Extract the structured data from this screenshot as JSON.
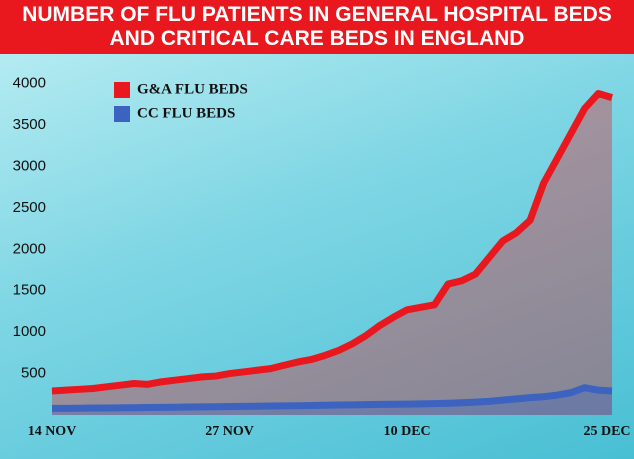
{
  "chart_data": {
    "type": "line",
    "title": "NUMBER OF FLU PATIENTS IN GENERAL HOSPITAL BEDS AND CRITICAL CARE BEDS IN ENGLAND",
    "categories": [
      "14 NOV",
      null,
      null,
      null,
      null,
      null,
      null,
      null,
      null,
      null,
      null,
      null,
      null,
      "27 NOV",
      null,
      null,
      null,
      null,
      null,
      null,
      null,
      null,
      null,
      null,
      null,
      null,
      "10 DEC",
      null,
      null,
      null,
      null,
      null,
      null,
      null,
      null,
      null,
      null,
      null,
      null,
      null,
      null,
      "25 DEC"
    ],
    "series": [
      {
        "name": "G&A FLU BEDS",
        "color": "#e8181e",
        "values": [
          290,
          300,
          310,
          320,
          340,
          360,
          380,
          370,
          400,
          420,
          440,
          460,
          470,
          500,
          520,
          540,
          560,
          600,
          640,
          670,
          720,
          780,
          860,
          960,
          1080,
          1180,
          1270,
          1300,
          1330,
          1580,
          1620,
          1700,
          1900,
          2100,
          2200,
          2350,
          2800,
          3100,
          3400,
          3700,
          3880,
          3830
        ]
      },
      {
        "name": "CC FLU BEDS",
        "color": "#3c63c0",
        "values": [
          80,
          80,
          82,
          84,
          85,
          86,
          88,
          90,
          92,
          94,
          96,
          98,
          100,
          102,
          104,
          106,
          108,
          110,
          112,
          115,
          118,
          120,
          122,
          125,
          128,
          130,
          132,
          135,
          138,
          142,
          148,
          155,
          165,
          180,
          195,
          210,
          220,
          240,
          270,
          330,
          300,
          290
        ]
      }
    ],
    "ylim": [
      0,
      4200
    ],
    "yticks": [
      500,
      1000,
      1500,
      2000,
      2500,
      3000,
      3500,
      4000
    ],
    "grid": false
  }
}
